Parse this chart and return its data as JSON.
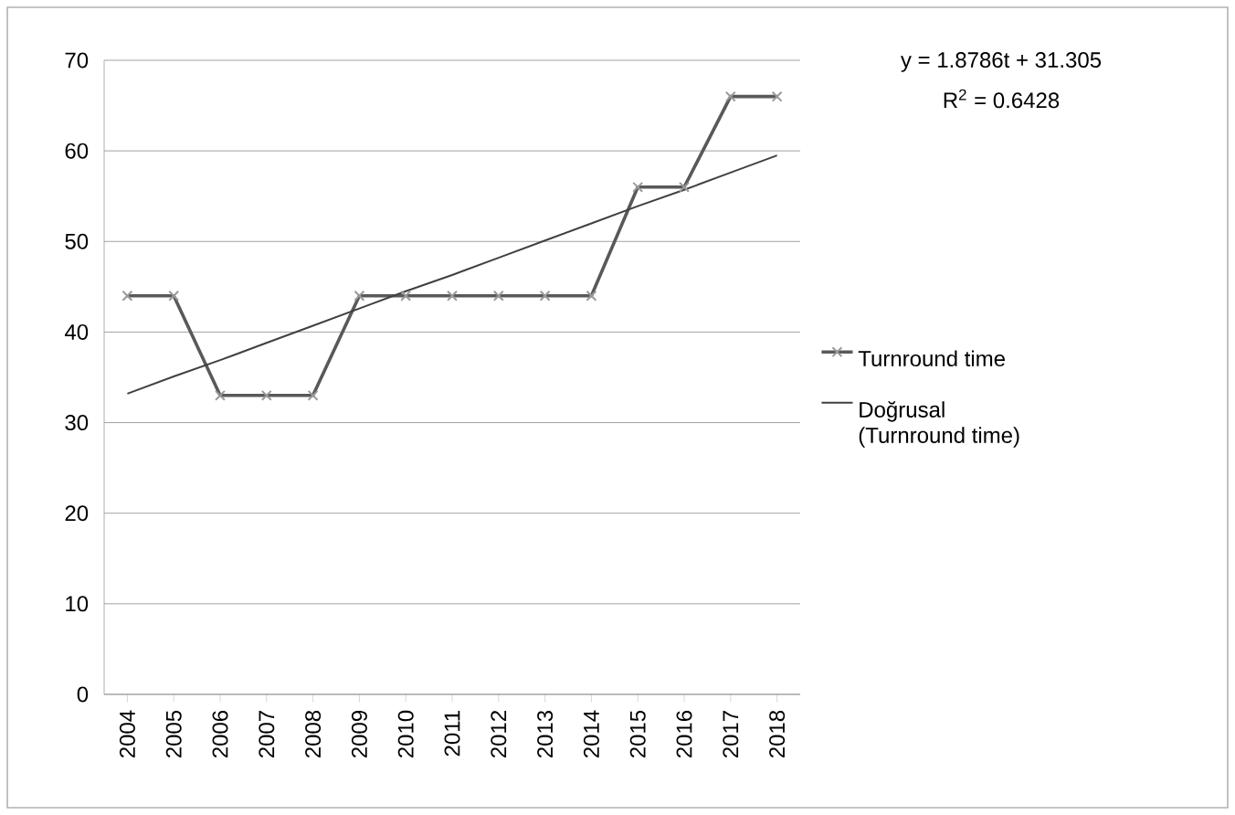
{
  "chart_data": {
    "type": "line",
    "categories": [
      "2004",
      "2005",
      "2006",
      "2007",
      "2008",
      "2009",
      "2010",
      "2011",
      "2012",
      "2013",
      "2014",
      "2015",
      "2016",
      "2017",
      "2018"
    ],
    "series": [
      {
        "name": "Turnround time",
        "color": "#595959",
        "marker": "cross",
        "values": [
          44,
          44,
          33,
          33,
          33,
          44,
          44,
          44,
          44,
          44,
          44,
          56,
          56,
          66,
          66
        ]
      },
      {
        "name": "Doğrusal (Turnround time)",
        "color": "#404040",
        "marker": "none",
        "values": [
          33.2,
          35.1,
          36.9,
          38.8,
          40.7,
          42.6,
          44.5,
          46.3,
          48.2,
          50.1,
          52.0,
          53.9,
          55.7,
          57.6,
          59.5
        ]
      }
    ],
    "annotations": [
      "y = 1.8786t + 31.305",
      "R$^{2}$ = 0.6428"
    ],
    "ylim": [
      0,
      70
    ],
    "yticks": [
      0,
      10,
      20,
      30,
      40,
      50,
      60,
      70
    ],
    "grid": "y",
    "legend": "right"
  }
}
